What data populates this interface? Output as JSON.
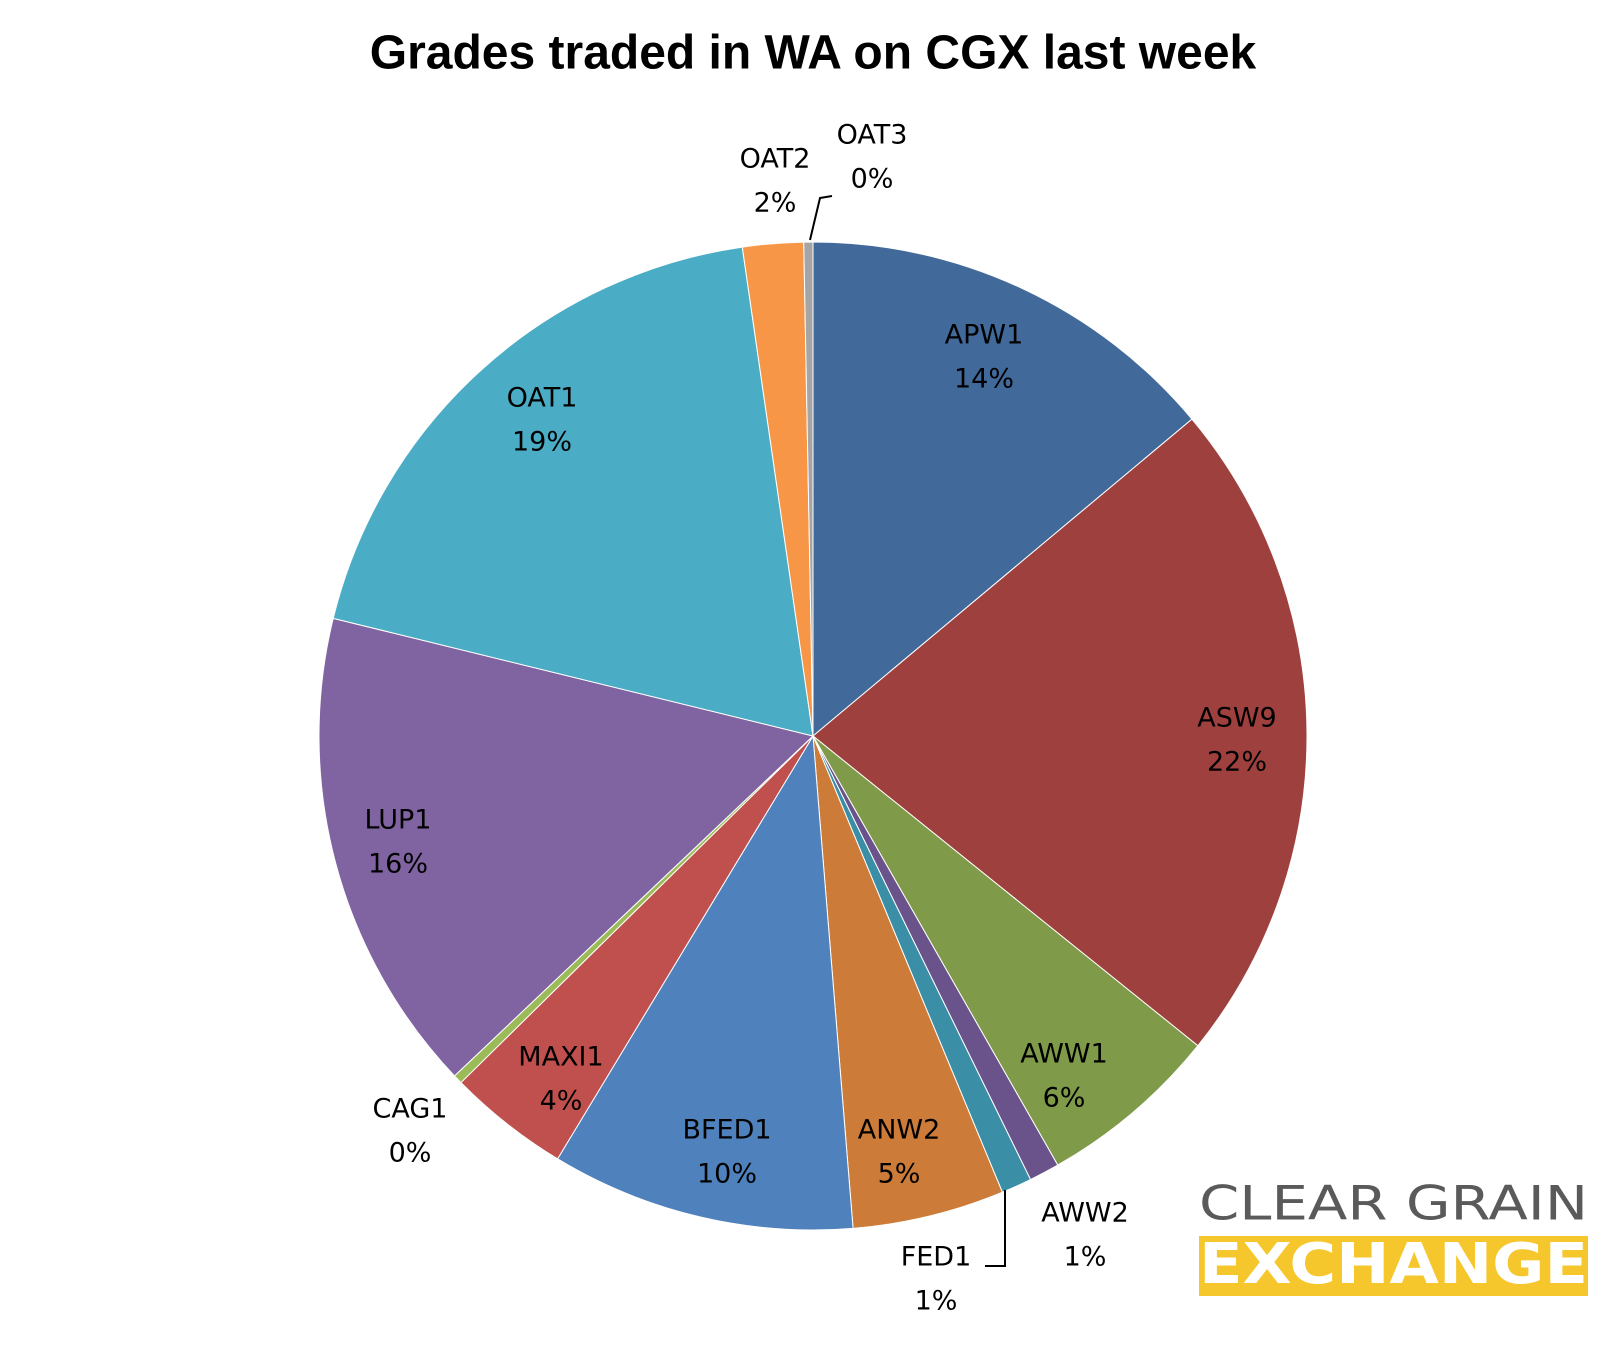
{
  "chart_data": {
    "type": "pie",
    "title": "Grades traded in WA on CGX last week",
    "categories": [
      "APW1",
      "ASW9",
      "AWW1",
      "AWW2",
      "FED1",
      "ANW2",
      "BFED1",
      "MAXI1",
      "CAG1",
      "LUP1",
      "OAT1",
      "OAT2",
      "OAT3"
    ],
    "values": [
      14,
      22,
      6,
      1,
      1,
      5,
      10,
      4,
      0.3,
      16,
      19,
      2,
      0.3
    ],
    "value_labels": [
      "14%",
      "22%",
      "6%",
      "1%",
      "1%",
      "5%",
      "10%",
      "4%",
      "0%",
      "16%",
      "19%",
      "2%",
      "0%"
    ],
    "colors": [
      "#416a9b",
      "#9e413e",
      "#7f9a48",
      "#6a538a",
      "#3a8ea6",
      "#cc7b38",
      "#4f81bd",
      "#c0504d",
      "#9bbb59",
      "#8064a2",
      "#4bacc6",
      "#f79646",
      "#a5a5a5"
    ]
  },
  "logo": {
    "line1": "CLEAR GRAIN",
    "line2": "EXCHANGE"
  }
}
